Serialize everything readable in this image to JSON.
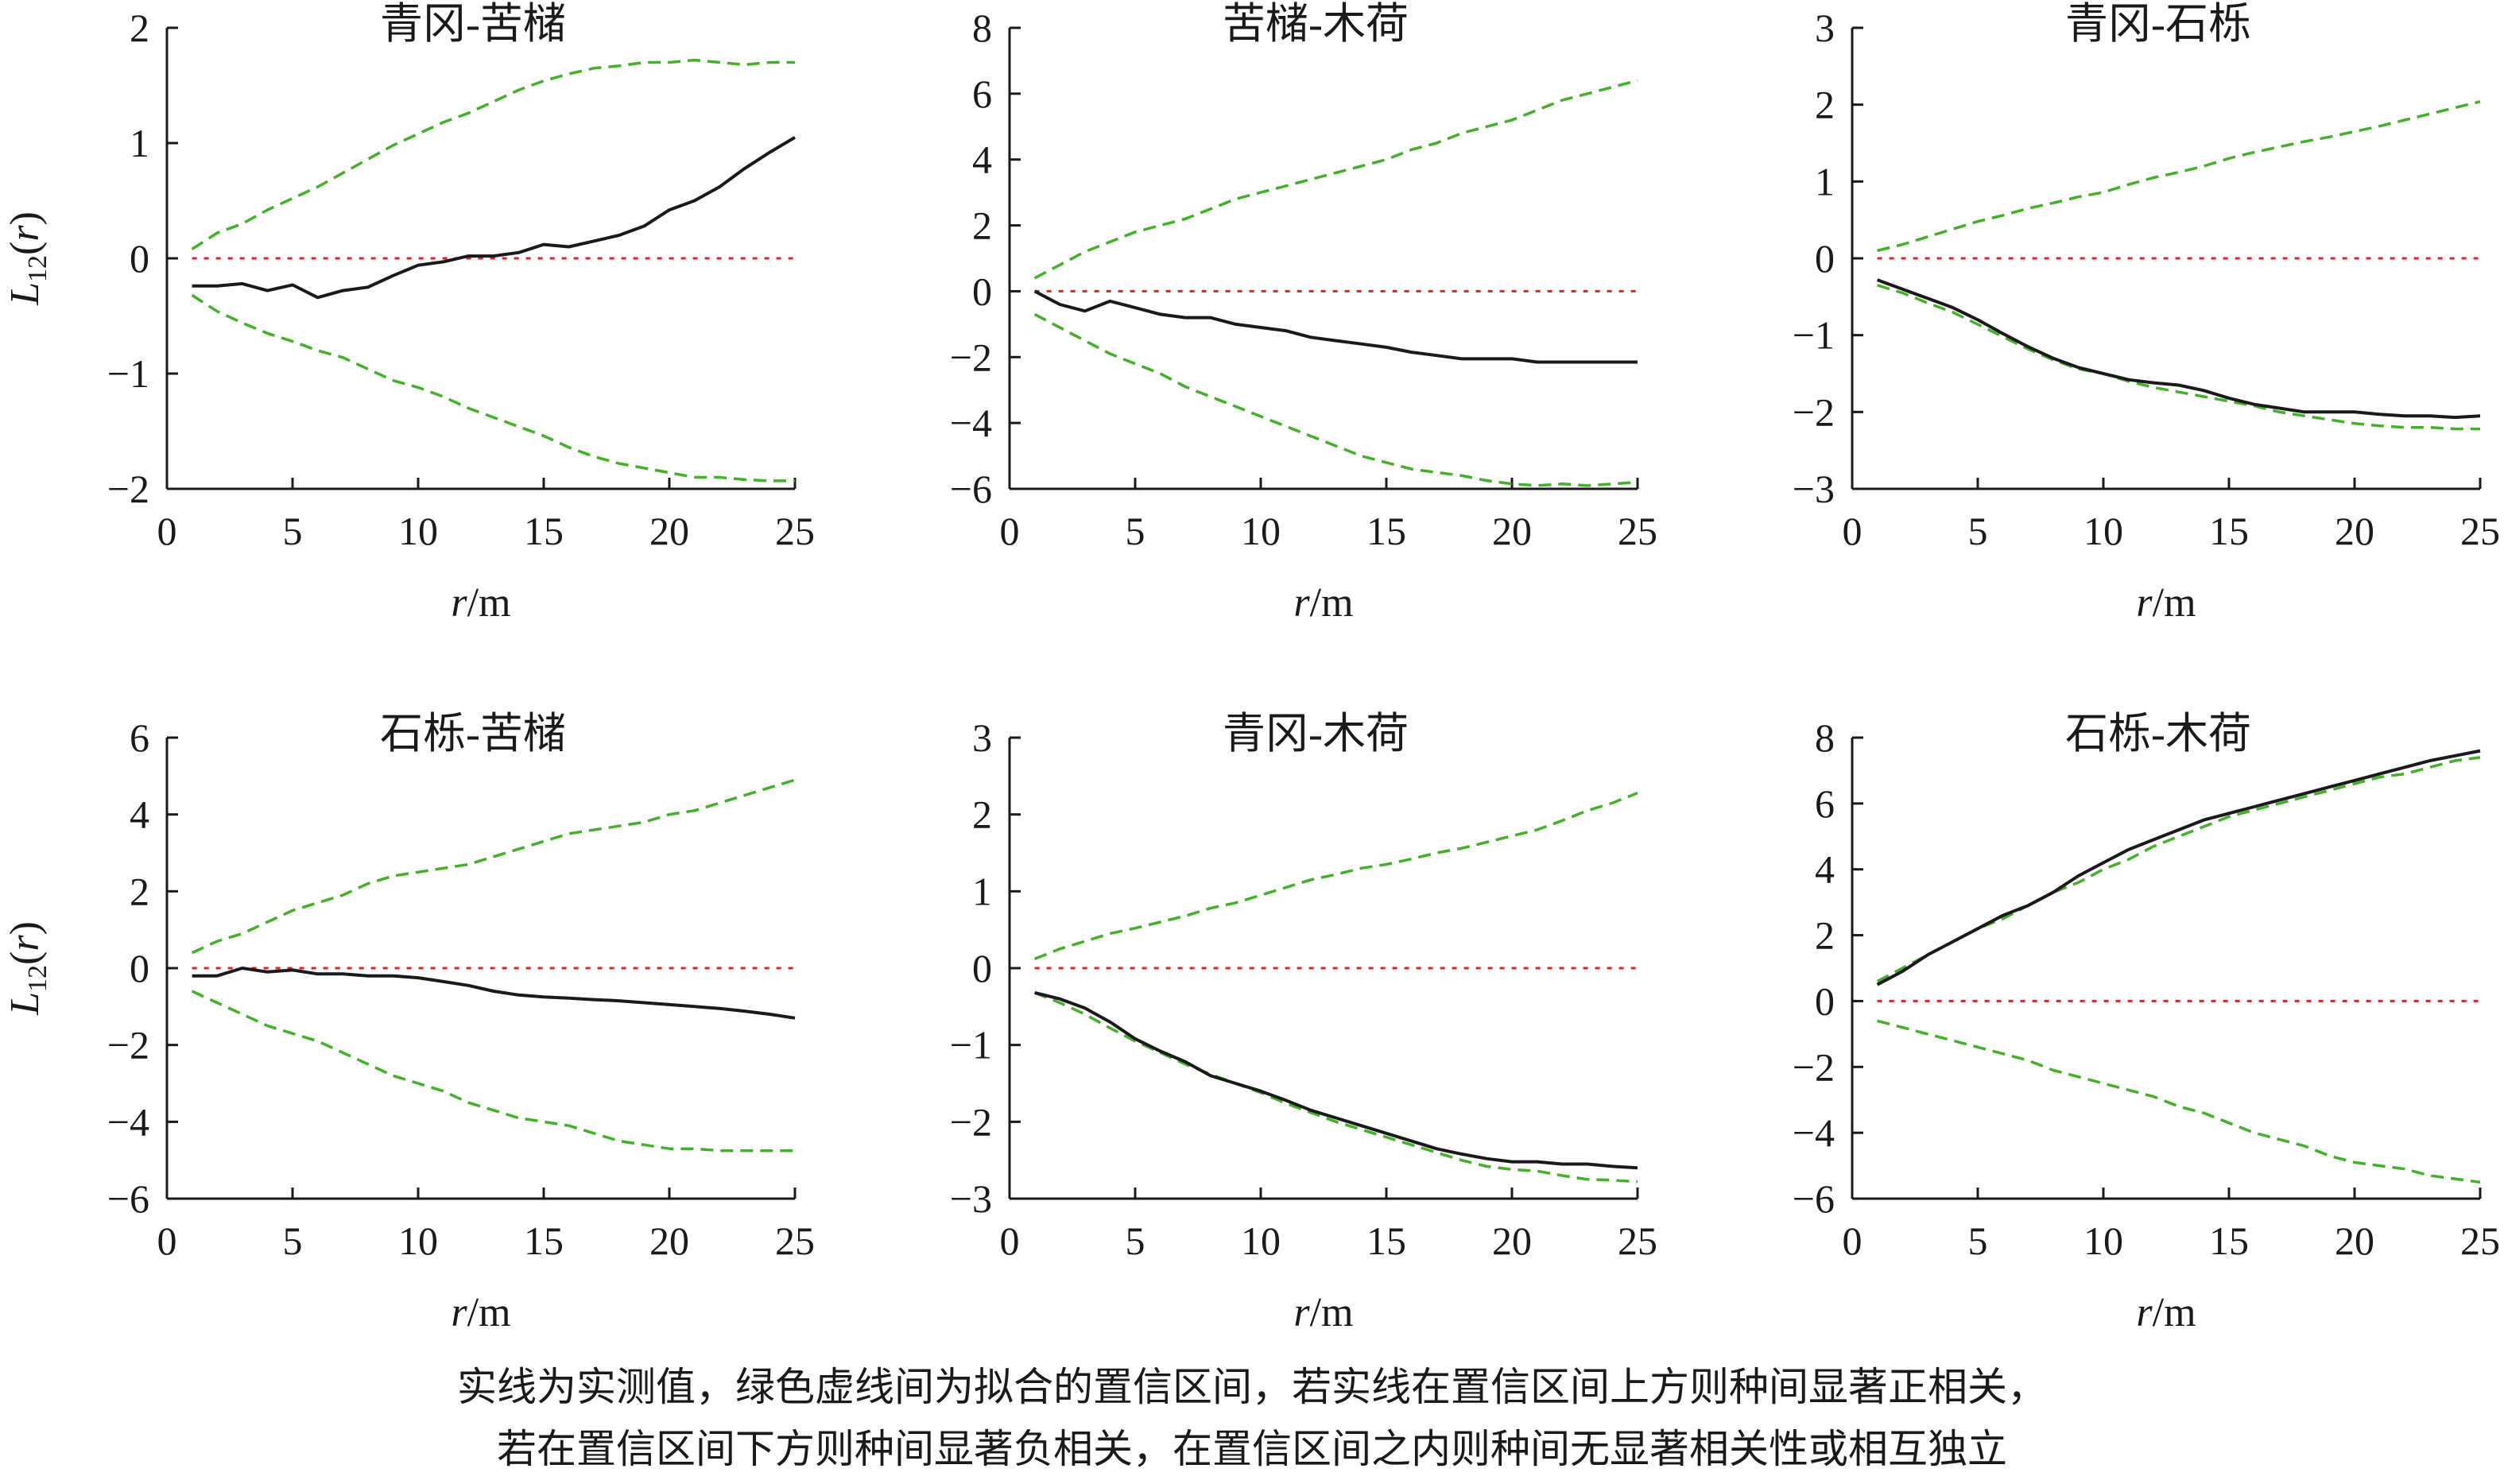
{
  "figure": {
    "caption_line1": "实线为实测值，绿色虚线间为拟合的置信区间，若实线在置信区间上方则种间显著正相关，",
    "caption_line2": "若在置信区间下方则种间显著负相关，在置信区间之内则种间无显著相关性或相互独立",
    "colors": {
      "observed": "#1a1a1a",
      "envelope": "#44b02a",
      "reference": "#d9262a",
      "axis": "#1a1a1a"
    }
  },
  "chart_data": [
    {
      "type": "line",
      "title": "青冈-苦槠",
      "xlabel_italic": "r",
      "xlabel_unit": "/m",
      "ylabel_main": "L",
      "ylabel_sub": "12",
      "ylabel_tail": "(r)",
      "xlim": [
        0,
        25
      ],
      "ylim": [
        -2,
        2
      ],
      "xticks": [
        0,
        5,
        10,
        15,
        20,
        25
      ],
      "yticks": [
        -2,
        -1,
        0,
        1,
        2
      ],
      "x": [
        1,
        2,
        3,
        4,
        5,
        6,
        7,
        8,
        9,
        10,
        11,
        12,
        13,
        14,
        15,
        16,
        17,
        18,
        19,
        20,
        21,
        22,
        23,
        24,
        25
      ],
      "series": [
        {
          "name": "observed",
          "values": [
            -0.24,
            -0.24,
            -0.22,
            -0.28,
            -0.23,
            -0.34,
            -0.28,
            -0.25,
            -0.15,
            -0.06,
            -0.03,
            0.02,
            0.02,
            0.05,
            0.12,
            0.1,
            0.15,
            0.2,
            0.28,
            0.42,
            0.5,
            0.62,
            0.78,
            0.92,
            1.05
          ]
        },
        {
          "name": "upper_envelope",
          "values": [
            0.08,
            0.22,
            0.3,
            0.42,
            0.52,
            0.62,
            0.74,
            0.86,
            0.98,
            1.08,
            1.18,
            1.26,
            1.36,
            1.46,
            1.54,
            1.6,
            1.65,
            1.67,
            1.7,
            1.7,
            1.72,
            1.7,
            1.68,
            1.7,
            1.7
          ]
        },
        {
          "name": "lower_envelope",
          "values": [
            -0.32,
            -0.46,
            -0.56,
            -0.65,
            -0.72,
            -0.8,
            -0.86,
            -0.96,
            -1.06,
            -1.12,
            -1.2,
            -1.3,
            -1.38,
            -1.46,
            -1.54,
            -1.64,
            -1.72,
            -1.78,
            -1.82,
            -1.86,
            -1.9,
            -1.9,
            -1.92,
            -1.93,
            -1.93
          ]
        },
        {
          "name": "reference",
          "values": [
            0,
            0,
            0,
            0,
            0,
            0,
            0,
            0,
            0,
            0,
            0,
            0,
            0,
            0,
            0,
            0,
            0,
            0,
            0,
            0,
            0,
            0,
            0,
            0,
            0
          ]
        }
      ]
    },
    {
      "type": "line",
      "title": "苦槠-木荷",
      "xlabel_italic": "r",
      "xlabel_unit": "/m",
      "ylabel_main": "",
      "ylabel_sub": "",
      "ylabel_tail": "",
      "xlim": [
        0,
        25
      ],
      "ylim": [
        -6,
        8
      ],
      "xticks": [
        0,
        5,
        10,
        15,
        20,
        25
      ],
      "yticks": [
        -6,
        -4,
        -2,
        0,
        2,
        4,
        6,
        8
      ],
      "x": [
        1,
        2,
        3,
        4,
        5,
        6,
        7,
        8,
        9,
        10,
        11,
        12,
        13,
        14,
        15,
        16,
        17,
        18,
        19,
        20,
        21,
        22,
        23,
        24,
        25
      ],
      "series": [
        {
          "name": "observed",
          "values": [
            0.0,
            -0.4,
            -0.6,
            -0.3,
            -0.5,
            -0.7,
            -0.8,
            -0.8,
            -1.0,
            -1.1,
            -1.2,
            -1.4,
            -1.5,
            -1.6,
            -1.7,
            -1.85,
            -1.95,
            -2.05,
            -2.05,
            -2.05,
            -2.15,
            -2.15,
            -2.15,
            -2.15,
            -2.15
          ]
        },
        {
          "name": "upper_envelope",
          "values": [
            0.4,
            0.8,
            1.2,
            1.5,
            1.8,
            2.0,
            2.2,
            2.5,
            2.8,
            3.0,
            3.2,
            3.4,
            3.6,
            3.8,
            4.0,
            4.3,
            4.5,
            4.8,
            5.0,
            5.2,
            5.5,
            5.8,
            6.0,
            6.2,
            6.4
          ]
        },
        {
          "name": "lower_envelope",
          "values": [
            -0.7,
            -1.1,
            -1.5,
            -1.9,
            -2.2,
            -2.5,
            -2.9,
            -3.2,
            -3.5,
            -3.8,
            -4.1,
            -4.4,
            -4.7,
            -5.0,
            -5.2,
            -5.4,
            -5.5,
            -5.6,
            -5.75,
            -5.85,
            -5.9,
            -5.85,
            -5.9,
            -5.85,
            -5.8
          ]
        },
        {
          "name": "reference",
          "values": [
            0,
            0,
            0,
            0,
            0,
            0,
            0,
            0,
            0,
            0,
            0,
            0,
            0,
            0,
            0,
            0,
            0,
            0,
            0,
            0,
            0,
            0,
            0,
            0,
            0
          ]
        }
      ]
    },
    {
      "type": "line",
      "title": "青冈-石栎",
      "xlabel_italic": "r",
      "xlabel_unit": "/m",
      "ylabel_main": "",
      "ylabel_sub": "",
      "ylabel_tail": "",
      "xlim": [
        0,
        25
      ],
      "ylim": [
        -3,
        3
      ],
      "xticks": [
        0,
        5,
        10,
        15,
        20,
        25
      ],
      "yticks": [
        -3,
        -2,
        -1,
        0,
        1,
        2,
        3
      ],
      "x": [
        1,
        2,
        3,
        4,
        5,
        6,
        7,
        8,
        9,
        10,
        11,
        12,
        13,
        14,
        15,
        16,
        17,
        18,
        19,
        20,
        21,
        22,
        23,
        24,
        25
      ],
      "series": [
        {
          "name": "observed",
          "values": [
            -0.28,
            -0.4,
            -0.52,
            -0.64,
            -0.8,
            -0.98,
            -1.15,
            -1.3,
            -1.42,
            -1.5,
            -1.58,
            -1.62,
            -1.65,
            -1.72,
            -1.82,
            -1.9,
            -1.95,
            -2.0,
            -2.0,
            -2.0,
            -2.03,
            -2.05,
            -2.05,
            -2.07,
            -2.05
          ]
        },
        {
          "name": "upper_envelope",
          "values": [
            0.1,
            0.18,
            0.28,
            0.38,
            0.48,
            0.56,
            0.65,
            0.72,
            0.8,
            0.86,
            0.96,
            1.05,
            1.12,
            1.2,
            1.3,
            1.38,
            1.45,
            1.52,
            1.58,
            1.65,
            1.72,
            1.8,
            1.88,
            1.96,
            2.04
          ]
        },
        {
          "name": "lower_envelope",
          "values": [
            -0.35,
            -0.45,
            -0.58,
            -0.7,
            -0.86,
            -1.02,
            -1.18,
            -1.32,
            -1.44,
            -1.5,
            -1.6,
            -1.68,
            -1.74,
            -1.8,
            -1.86,
            -1.92,
            -2.0,
            -2.05,
            -2.1,
            -2.15,
            -2.18,
            -2.2,
            -2.2,
            -2.22,
            -2.22
          ]
        },
        {
          "name": "reference",
          "values": [
            0,
            0,
            0,
            0,
            0,
            0,
            0,
            0,
            0,
            0,
            0,
            0,
            0,
            0,
            0,
            0,
            0,
            0,
            0,
            0,
            0,
            0,
            0,
            0,
            0
          ]
        }
      ]
    },
    {
      "type": "line",
      "title": "石栎-苦槠",
      "xlabel_italic": "r",
      "xlabel_unit": "/m",
      "ylabel_main": "L",
      "ylabel_sub": "12",
      "ylabel_tail": "(r)",
      "xlim": [
        0,
        25
      ],
      "ylim": [
        -6,
        6
      ],
      "xticks": [
        0,
        5,
        10,
        15,
        20,
        25
      ],
      "yticks": [
        -6,
        -4,
        -2,
        0,
        2,
        4,
        6
      ],
      "x": [
        1,
        2,
        3,
        4,
        5,
        6,
        7,
        8,
        9,
        10,
        11,
        12,
        13,
        14,
        15,
        16,
        17,
        18,
        19,
        20,
        21,
        22,
        23,
        24,
        25
      ],
      "series": [
        {
          "name": "observed",
          "values": [
            -0.2,
            -0.2,
            0.0,
            -0.1,
            -0.05,
            -0.15,
            -0.15,
            -0.2,
            -0.2,
            -0.25,
            -0.35,
            -0.45,
            -0.6,
            -0.7,
            -0.75,
            -0.78,
            -0.82,
            -0.85,
            -0.9,
            -0.95,
            -1.0,
            -1.05,
            -1.12,
            -1.2,
            -1.3
          ]
        },
        {
          "name": "upper_envelope",
          "values": [
            0.4,
            0.7,
            0.9,
            1.2,
            1.5,
            1.7,
            1.9,
            2.2,
            2.4,
            2.5,
            2.6,
            2.7,
            2.9,
            3.1,
            3.3,
            3.5,
            3.6,
            3.7,
            3.8,
            4.0,
            4.1,
            4.3,
            4.5,
            4.7,
            4.9
          ]
        },
        {
          "name": "lower_envelope",
          "values": [
            -0.6,
            -0.9,
            -1.2,
            -1.5,
            -1.7,
            -1.9,
            -2.2,
            -2.5,
            -2.8,
            -3.0,
            -3.2,
            -3.5,
            -3.7,
            -3.9,
            -4.0,
            -4.1,
            -4.3,
            -4.5,
            -4.6,
            -4.7,
            -4.7,
            -4.75,
            -4.75,
            -4.75,
            -4.75
          ]
        },
        {
          "name": "reference",
          "values": [
            0,
            0,
            0,
            0,
            0,
            0,
            0,
            0,
            0,
            0,
            0,
            0,
            0,
            0,
            0,
            0,
            0,
            0,
            0,
            0,
            0,
            0,
            0,
            0,
            0
          ]
        }
      ]
    },
    {
      "type": "line",
      "title": "青冈-木荷",
      "xlabel_italic": "r",
      "xlabel_unit": "/m",
      "ylabel_main": "",
      "ylabel_sub": "",
      "ylabel_tail": "",
      "xlim": [
        0,
        25
      ],
      "ylim": [
        -3,
        3
      ],
      "xticks": [
        0,
        5,
        10,
        15,
        20,
        25
      ],
      "yticks": [
        -3,
        -2,
        -1,
        0,
        1,
        2,
        3
      ],
      "x": [
        1,
        2,
        3,
        4,
        5,
        6,
        7,
        8,
        9,
        10,
        11,
        12,
        13,
        14,
        15,
        16,
        17,
        18,
        19,
        20,
        21,
        22,
        23,
        24,
        25
      ],
      "series": [
        {
          "name": "observed",
          "values": [
            -0.32,
            -0.4,
            -0.52,
            -0.7,
            -0.92,
            -1.08,
            -1.22,
            -1.4,
            -1.5,
            -1.6,
            -1.72,
            -1.85,
            -1.95,
            -2.05,
            -2.15,
            -2.25,
            -2.35,
            -2.42,
            -2.48,
            -2.52,
            -2.52,
            -2.55,
            -2.55,
            -2.58,
            -2.6
          ]
        },
        {
          "name": "upper_envelope",
          "values": [
            0.12,
            0.25,
            0.35,
            0.45,
            0.52,
            0.6,
            0.68,
            0.78,
            0.85,
            0.95,
            1.05,
            1.15,
            1.22,
            1.3,
            1.35,
            1.42,
            1.5,
            1.56,
            1.64,
            1.72,
            1.8,
            1.92,
            2.05,
            2.15,
            2.28
          ]
        },
        {
          "name": "lower_envelope",
          "values": [
            -0.32,
            -0.45,
            -0.6,
            -0.78,
            -0.95,
            -1.1,
            -1.25,
            -1.38,
            -1.5,
            -1.62,
            -1.76,
            -1.88,
            -2.0,
            -2.1,
            -2.2,
            -2.3,
            -2.4,
            -2.5,
            -2.58,
            -2.62,
            -2.64,
            -2.7,
            -2.75,
            -2.76,
            -2.78
          ]
        },
        {
          "name": "reference",
          "values": [
            0,
            0,
            0,
            0,
            0,
            0,
            0,
            0,
            0,
            0,
            0,
            0,
            0,
            0,
            0,
            0,
            0,
            0,
            0,
            0,
            0,
            0,
            0,
            0,
            0
          ]
        }
      ]
    },
    {
      "type": "line",
      "title": "石栎-木荷",
      "xlabel_italic": "r",
      "xlabel_unit": "/m",
      "ylabel_main": "",
      "ylabel_sub": "",
      "ylabel_tail": "",
      "xlim": [
        0,
        25
      ],
      "ylim": [
        -6,
        8
      ],
      "xticks": [
        0,
        5,
        10,
        15,
        20,
        25
      ],
      "yticks": [
        -6,
        -4,
        -2,
        0,
        2,
        4,
        6,
        8
      ],
      "x": [
        1,
        2,
        3,
        4,
        5,
        6,
        7,
        8,
        9,
        10,
        11,
        12,
        13,
        14,
        15,
        16,
        17,
        18,
        19,
        20,
        21,
        22,
        23,
        24,
        25
      ],
      "series": [
        {
          "name": "observed",
          "values": [
            0.5,
            0.9,
            1.4,
            1.8,
            2.2,
            2.6,
            2.9,
            3.3,
            3.8,
            4.2,
            4.6,
            4.9,
            5.2,
            5.5,
            5.7,
            5.9,
            6.1,
            6.3,
            6.5,
            6.7,
            6.9,
            7.1,
            7.3,
            7.45,
            7.6
          ]
        },
        {
          "name": "upper_envelope",
          "values": [
            0.6,
            1.0,
            1.4,
            1.8,
            2.2,
            2.5,
            2.9,
            3.3,
            3.6,
            4.0,
            4.3,
            4.7,
            5.0,
            5.3,
            5.6,
            5.8,
            6.0,
            6.2,
            6.4,
            6.6,
            6.8,
            6.9,
            7.1,
            7.3,
            7.4
          ]
        },
        {
          "name": "lower_envelope",
          "values": [
            -0.6,
            -0.8,
            -1.0,
            -1.2,
            -1.4,
            -1.6,
            -1.8,
            -2.1,
            -2.3,
            -2.5,
            -2.7,
            -2.9,
            -3.2,
            -3.4,
            -3.7,
            -4.0,
            -4.2,
            -4.4,
            -4.7,
            -4.9,
            -5.0,
            -5.1,
            -5.3,
            -5.4,
            -5.5
          ]
        },
        {
          "name": "reference",
          "values": [
            0,
            0,
            0,
            0,
            0,
            0,
            0,
            0,
            0,
            0,
            0,
            0,
            0,
            0,
            0,
            0,
            0,
            0,
            0,
            0,
            0,
            0,
            0,
            0,
            0
          ]
        }
      ]
    }
  ]
}
